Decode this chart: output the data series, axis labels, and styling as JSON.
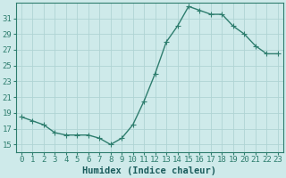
{
  "x": [
    0,
    1,
    2,
    3,
    4,
    5,
    6,
    7,
    8,
    9,
    10,
    11,
    12,
    13,
    14,
    15,
    16,
    17,
    18,
    19,
    20,
    21,
    22,
    23
  ],
  "y": [
    18.5,
    18.0,
    17.5,
    16.5,
    16.2,
    16.2,
    16.2,
    15.8,
    15.0,
    15.8,
    17.5,
    20.5,
    24.0,
    28.0,
    30.0,
    32.5,
    32.0,
    31.5,
    31.5,
    30.0,
    29.0,
    27.5,
    26.5,
    26.5
  ],
  "line_color": "#2e7d6e",
  "marker": "+",
  "marker_size": 4,
  "bg_color": "#ceeaea",
  "grid_color": "#afd4d4",
  "xlabel": "Humidex (Indice chaleur)",
  "xlabel_fontsize": 7.5,
  "tick_fontsize": 6.5,
  "ylim": [
    14,
    33
  ],
  "yticks": [
    15,
    17,
    19,
    21,
    23,
    25,
    27,
    29,
    31
  ],
  "xticks": [
    0,
    1,
    2,
    3,
    4,
    5,
    6,
    7,
    8,
    9,
    10,
    11,
    12,
    13,
    14,
    15,
    16,
    17,
    18,
    19,
    20,
    21,
    22,
    23
  ],
  "line_width": 1.0,
  "spine_color": "#2e7d6e",
  "label_color": "#1a5c5c"
}
